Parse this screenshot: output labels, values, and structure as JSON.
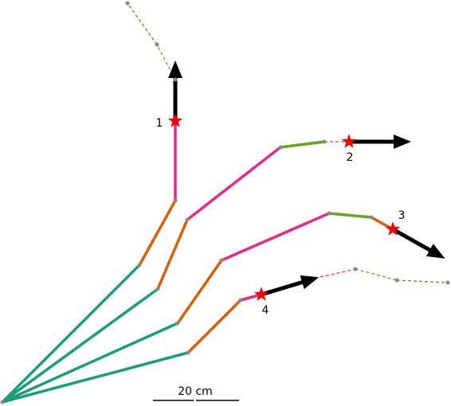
{
  "labels": [
    "1",
    "2",
    "3",
    "4"
  ],
  "scale_bar": "20 cm"
}
